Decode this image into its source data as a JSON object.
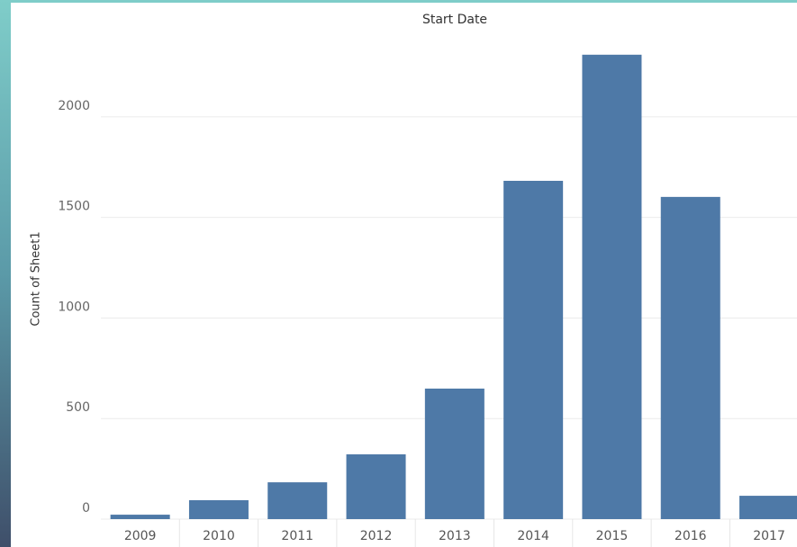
{
  "chart_data": {
    "type": "bar",
    "title": "Start Date",
    "y_label": "Count of Sheet1",
    "categories": [
      "2009",
      "2010",
      "2011",
      "2012",
      "2013",
      "2014",
      "2015",
      "2016",
      "2017"
    ],
    "values": [
      22,
      94,
      183,
      322,
      649,
      1682,
      2309,
      1602,
      116
    ],
    "color": "#4e79a7",
    "ylim": [
      0,
      2420
    ],
    "yticks": [
      0,
      500,
      1000,
      1500,
      2000
    ],
    "grid": true
  }
}
